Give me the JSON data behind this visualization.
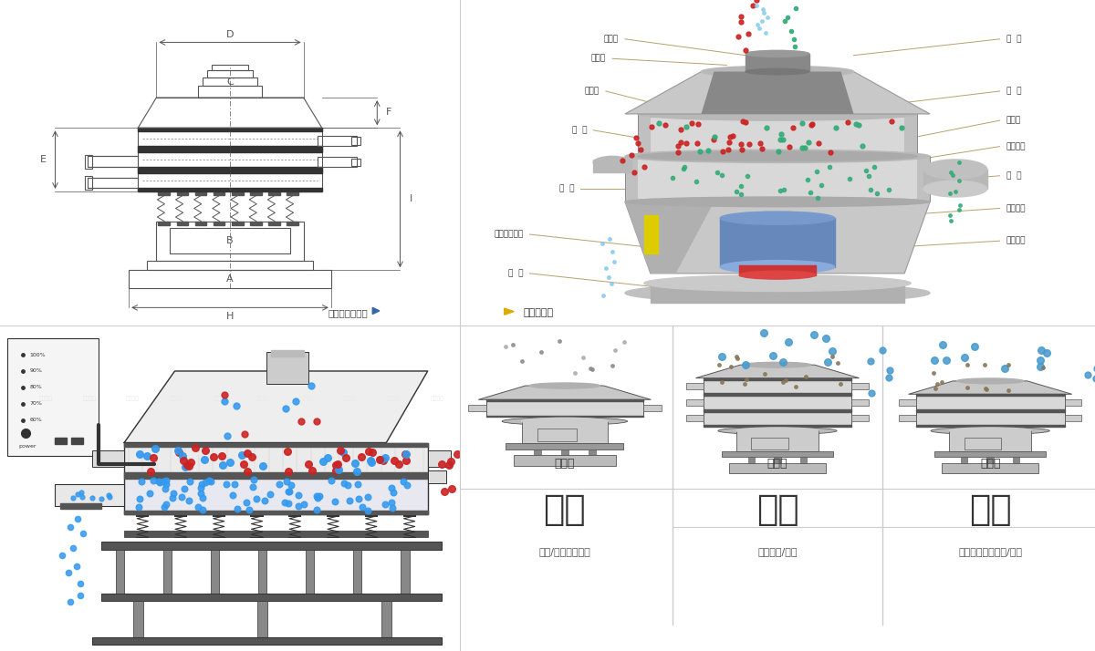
{
  "bg_color": "#ffffff",
  "panel_border": "#c8c8c8",
  "dim_label_text": "外形尺寸示意图",
  "struct_label_text": "结构示意图",
  "left_labels": [
    "进料口",
    "防尘盖",
    "出料口",
    "束  环",
    "弹  簧",
    "运输固定螺栓",
    "机  座"
  ],
  "right_labels": [
    "筛  网",
    "网  架",
    "加重块",
    "上部重锤",
    "筛  盘",
    "振动电机",
    "下部重锤"
  ],
  "fen_ji": "分级",
  "fen_ji_sub": "颗粒/粉末准确分级",
  "guo_lv": "过滤",
  "guo_lv_sub": "去除异物/结块",
  "chu_za": "除杂",
  "chu_za_sub": "去除液体中的颜粒/异物",
  "dan_ceng": "单层式",
  "san_ceng": "三层式",
  "shuang_ceng": "双层式",
  "lc": "#222222",
  "label_line_color": "#b8a878",
  "arrow_color": "#2266aa"
}
